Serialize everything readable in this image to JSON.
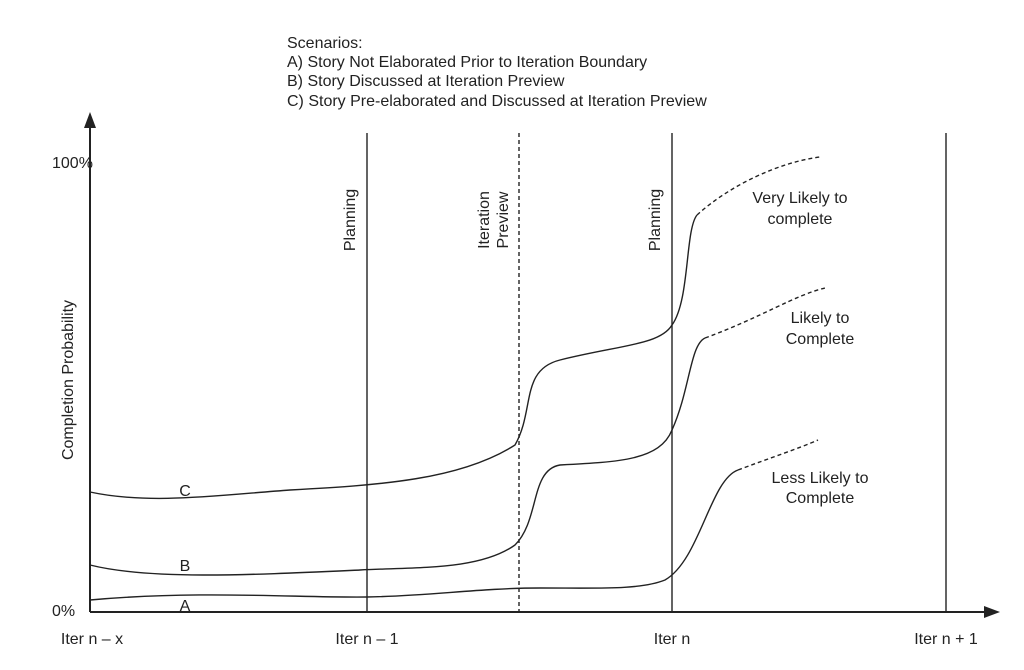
{
  "scenarios": {
    "title": "Scenarios:",
    "items": [
      "A) Story Not Elaborated Prior to Iteration Boundary",
      "B) Story Discussed at Iteration Preview",
      "C) Story Pre-elaborated and Discussed at Iteration Preview"
    ]
  },
  "y_axis": {
    "title": "Completion Probability",
    "top_label": "100%",
    "bottom_label": "0%"
  },
  "x_axis": {
    "labels": [
      "Iter n – x",
      "Iter n – 1",
      "Iter n",
      "Iter n + 1"
    ]
  },
  "markers": [
    {
      "lines": [
        "Planning"
      ]
    },
    {
      "lines": [
        "Iteration",
        "Preview"
      ]
    },
    {
      "lines": [
        "Planning"
      ]
    }
  ],
  "curves": [
    {
      "name": "C"
    },
    {
      "name": "B"
    },
    {
      "name": "A"
    }
  ],
  "outcomes": [
    {
      "lines": [
        "Very Likely to",
        "complete"
      ]
    },
    {
      "lines": [
        "Likely to",
        "Complete"
      ]
    },
    {
      "lines": [
        "Less Likely to",
        "Complete"
      ]
    }
  ]
}
